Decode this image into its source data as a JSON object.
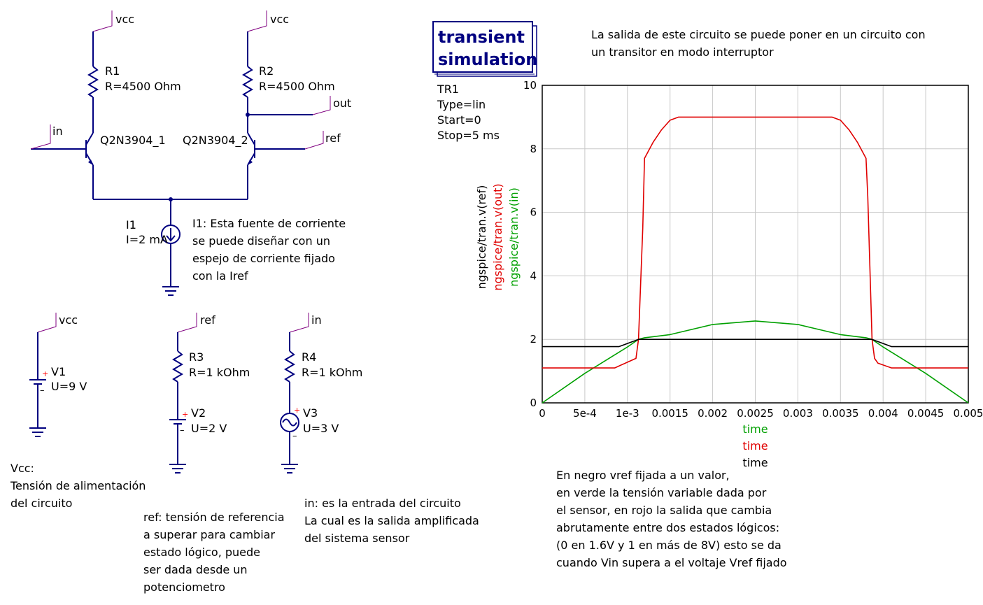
{
  "colors": {
    "wire": "#000080",
    "label_flag": "#800080",
    "series_black": "#000000",
    "series_red": "#e00000",
    "series_green": "#00a000",
    "grid": "#c8c8c8"
  },
  "nets": {
    "vcc1": "vcc",
    "vcc2": "vcc",
    "out": "out",
    "in1": "in",
    "ref1": "ref",
    "vcc3": "vcc",
    "ref2": "ref",
    "in2": "in"
  },
  "components": {
    "r1_name": "R1",
    "r1_value": "R=4500 Ohm",
    "r2_name": "R2",
    "r2_value": "R=4500 Ohm",
    "q1_name": "Q2N3904_1",
    "q2_name": "Q2N3904_2",
    "i1_name": "I1",
    "i1_value": "I=2 mA",
    "v1_name": "V1",
    "v1_value": "U=9 V",
    "r3_name": "R3",
    "r3_value": "R=1 kOhm",
    "v2_name": "V2",
    "v2_value": "U=2 V",
    "r4_name": "R4",
    "r4_value": "R=1 kOhm",
    "v3_name": "V3",
    "v3_value": "U=3 V"
  },
  "simulation": {
    "box_line1": "transient",
    "box_line2": "simulation",
    "name": "TR1",
    "type": "Type=lin",
    "start": "Start=0",
    "stop": "Stop=5 ms"
  },
  "notes": {
    "top_right_1": "La salida de este circuito se puede poner en un circuito con",
    "top_right_2": "un transitor en modo interruptor",
    "i1_1": "I1: Esta fuente de corriente",
    "i1_2": "se puede diseñar con un",
    "i1_3": "espejo de corriente fijado",
    "i1_4": "con la Iref",
    "vcc_1": "Vcc:",
    "vcc_2": "Tensión de alimentación",
    "vcc_3": "del circuito",
    "ref_1": "ref: tensión de referencia",
    "ref_2": "a superar para cambiar",
    "ref_3": "estado lógico, puede",
    "ref_4": "ser dada desde un",
    "ref_5": "potenciometro",
    "in_1": "in: es la entrada del circuito",
    "in_2": "La cual es la salida amplificada",
    "in_3": "del sistema sensor",
    "legend_1": "En negro vref fijada a un valor,",
    "legend_2": "en verde la tensión variable dada por",
    "legend_3": "el sensor, en rojo la salida que cambia",
    "legend_4": "abrutamente entre dos estados lógicos:",
    "legend_5": "(0 en 1.6V y 1 en más de  8V) esto se da",
    "legend_6": "cuando Vin supera a el voltaje Vref fijado"
  },
  "chart_data": {
    "type": "line",
    "xlim": [
      0,
      0.005
    ],
    "ylim": [
      0,
      10
    ],
    "x_ticks": [
      "0",
      "5e-4",
      "1e-3",
      "0.0015",
      "0.002",
      "0.0025",
      "0.003",
      "0.0035",
      "0.004",
      "0.0045",
      "0.005"
    ],
    "y_ticks": [
      "0",
      "2",
      "4",
      "6",
      "8",
      "10"
    ],
    "grid": true,
    "xlabels": [
      {
        "text": "time",
        "color": "#00a000"
      },
      {
        "text": "time",
        "color": "#e00000"
      },
      {
        "text": "time",
        "color": "#000000"
      }
    ],
    "ylabels": [
      {
        "text": "ngspice/tran.v(ref)",
        "color": "#000000"
      },
      {
        "text": "ngspice/tran.v(out)",
        "color": "#e00000"
      },
      {
        "text": "ngspice/tran.v(in)",
        "color": "#00a000"
      }
    ],
    "series": [
      {
        "name": "ngspice/tran.v(ref)",
        "color": "#000000",
        "x": [
          0,
          0.0009,
          0.00113,
          0.00387,
          0.0041,
          0.005
        ],
        "y": [
          1.77,
          1.77,
          2.0,
          2.0,
          1.77,
          1.77
        ]
      },
      {
        "name": "ngspice/tran.v(out)",
        "color": "#e00000",
        "x": [
          0,
          0.00085,
          0.0011,
          0.00113,
          0.00118,
          0.0012,
          0.0013,
          0.0014,
          0.0015,
          0.0016,
          0.0017,
          0.0033,
          0.0034,
          0.0035,
          0.0036,
          0.0037,
          0.0038,
          0.00382,
          0.00387,
          0.0039,
          0.00394,
          0.0041,
          0.005
        ],
        "y": [
          1.1,
          1.1,
          1.4,
          2.0,
          5.5,
          7.7,
          8.2,
          8.6,
          8.9,
          9.0,
          9.0,
          9.0,
          9.0,
          8.9,
          8.6,
          8.2,
          7.7,
          6.5,
          2.0,
          1.4,
          1.25,
          1.1,
          1.1
        ]
      },
      {
        "name": "ngspice/tran.v(in)",
        "color": "#00a000",
        "x": [
          0,
          0.0005,
          0.001,
          0.00113,
          0.0012,
          0.0015,
          0.002,
          0.0025,
          0.003,
          0.0035,
          0.0038,
          0.00387,
          0.004,
          0.0045,
          0.005
        ],
        "y": [
          0,
          0.93,
          1.76,
          2.0,
          2.05,
          2.15,
          2.47,
          2.58,
          2.47,
          2.15,
          2.05,
          2.0,
          1.76,
          0.93,
          0
        ]
      }
    ]
  }
}
